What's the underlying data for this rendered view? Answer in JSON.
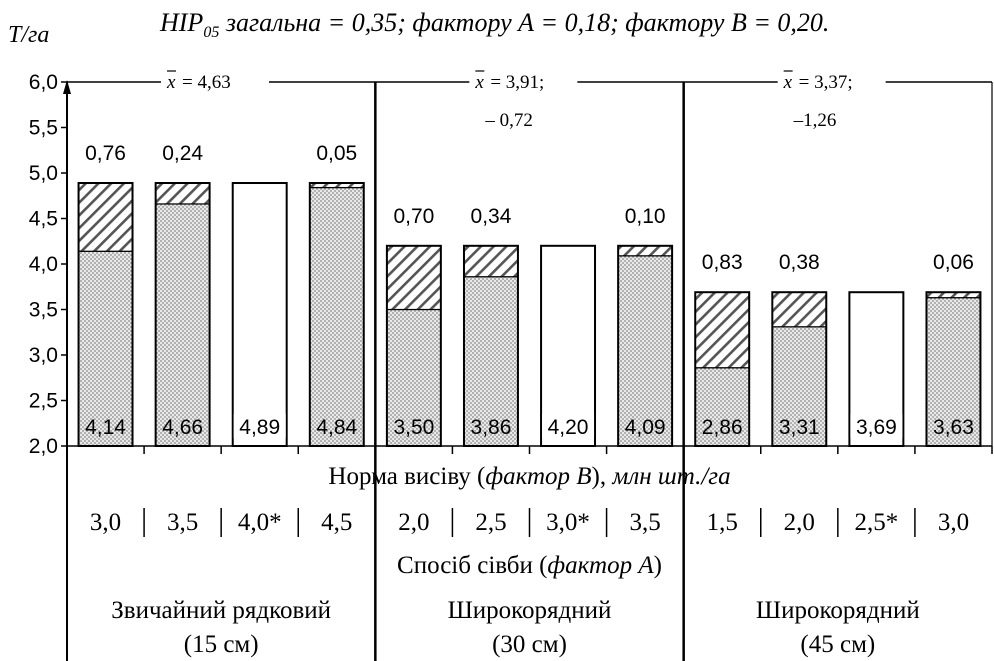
{
  "chart_data": {
    "type": "bar",
    "title_main": "НІР",
    "title_sub": "05",
    "title_rest": " загальна = 0,35; фактору А = 0,18; фактору В = 0,20.",
    "ylabel": "Т/га",
    "ylim": [
      2.0,
      6.0
    ],
    "yticks": [
      "2,0",
      "2,5",
      "3,0",
      "3,5",
      "4,0",
      "4,5",
      "5,0",
      "5,5",
      "6,0"
    ],
    "xlabel_b_prefix": "Норма висіву (",
    "xlabel_b_italic": "фактор В",
    "xlabel_b_suffix": "), ",
    "xlabel_b_unit": "млн шт./га",
    "xlabel_a_prefix": "Спосіб сівби (",
    "xlabel_a_italic": "фактор А",
    "xlabel_a_suffix": ")",
    "groups": [
      {
        "name_line1": "Звичайний рядковий",
        "name_line2": "(15 см)",
        "mean_label": "= 4,63",
        "mean_diff": "",
        "rates": [
          "3,0",
          "3,5",
          "4,0*",
          "4,5"
        ],
        "base": [
          4.14,
          4.66,
          4.89,
          4.84
        ],
        "base_labels": [
          "4,14",
          "4,66",
          "4,89",
          "4,84"
        ],
        "total": [
          4.89,
          4.89,
          4.89,
          4.89
        ],
        "diff_labels": [
          "0,76",
          "0,24",
          "",
          "0,05"
        ]
      },
      {
        "name_line1": "Широкорядний",
        "name_line2": "(30 см)",
        "mean_label": "= 3,91;",
        "mean_diff": "– 0,72",
        "rates": [
          "2,0",
          "2,5",
          "3,0*",
          "3,5"
        ],
        "base": [
          3.5,
          3.86,
          4.2,
          4.09
        ],
        "base_labels": [
          "3,50",
          "3,86",
          "4,20",
          "4,09"
        ],
        "total": [
          4.2,
          4.2,
          4.2,
          4.2
        ],
        "diff_labels": [
          "0,70",
          "0,34",
          "",
          "0,10"
        ]
      },
      {
        "name_line1": "Широкорядний",
        "name_line2": "(45 см)",
        "mean_label": "= 3,37;",
        "mean_diff": "–1,26",
        "rates": [
          "1,5",
          "2,0",
          "2,5*",
          "3,0"
        ],
        "base": [
          2.86,
          3.31,
          3.69,
          3.63
        ],
        "base_labels": [
          "2,86",
          "3,31",
          "3,69",
          "3,63"
        ],
        "total": [
          3.69,
          3.69,
          3.69,
          3.69
        ],
        "diff_labels": [
          "0,83",
          "0,38",
          "",
          "0,06"
        ]
      }
    ],
    "mean_symbol": "x",
    "colors": {
      "bar_outline": "#000000",
      "dot": "#9a9a9a",
      "hatch": "#555555"
    }
  }
}
